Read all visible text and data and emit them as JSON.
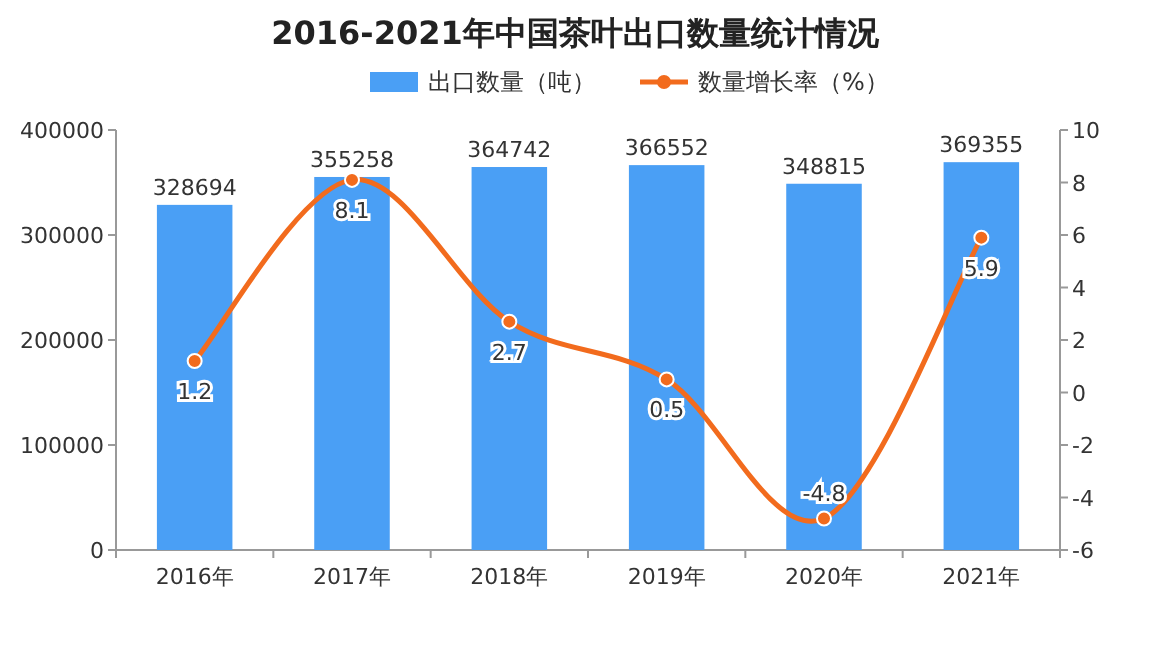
{
  "chart_data": {
    "type": "bar",
    "title": "2016-2021年中国茶叶出口数量统计情况",
    "categories": [
      "2016年",
      "2017年",
      "2018年",
      "2019年",
      "2020年",
      "2021年"
    ],
    "series": [
      {
        "name": "出口数量（吨）",
        "color": "#4a9ff5",
        "values": [
          328694,
          355258,
          364742,
          366552,
          348815,
          369355
        ]
      },
      {
        "name": "数量增长率（%）",
        "type": "line",
        "axis": "y2",
        "color": "#f26b1d",
        "marker": "circle",
        "values": [
          1.2,
          8.1,
          2.7,
          0.5,
          -4.8,
          5.9
        ]
      }
    ],
    "ylim": [
      0,
      400000
    ],
    "yticks": [
      0,
      100000,
      200000,
      300000,
      400000
    ],
    "y2lim": [
      -6,
      10
    ],
    "y2ticks": [
      -6,
      -4,
      -2,
      0,
      2,
      4,
      6,
      8,
      10
    ],
    "data_labels": true,
    "legend": "top",
    "grid": false
  }
}
